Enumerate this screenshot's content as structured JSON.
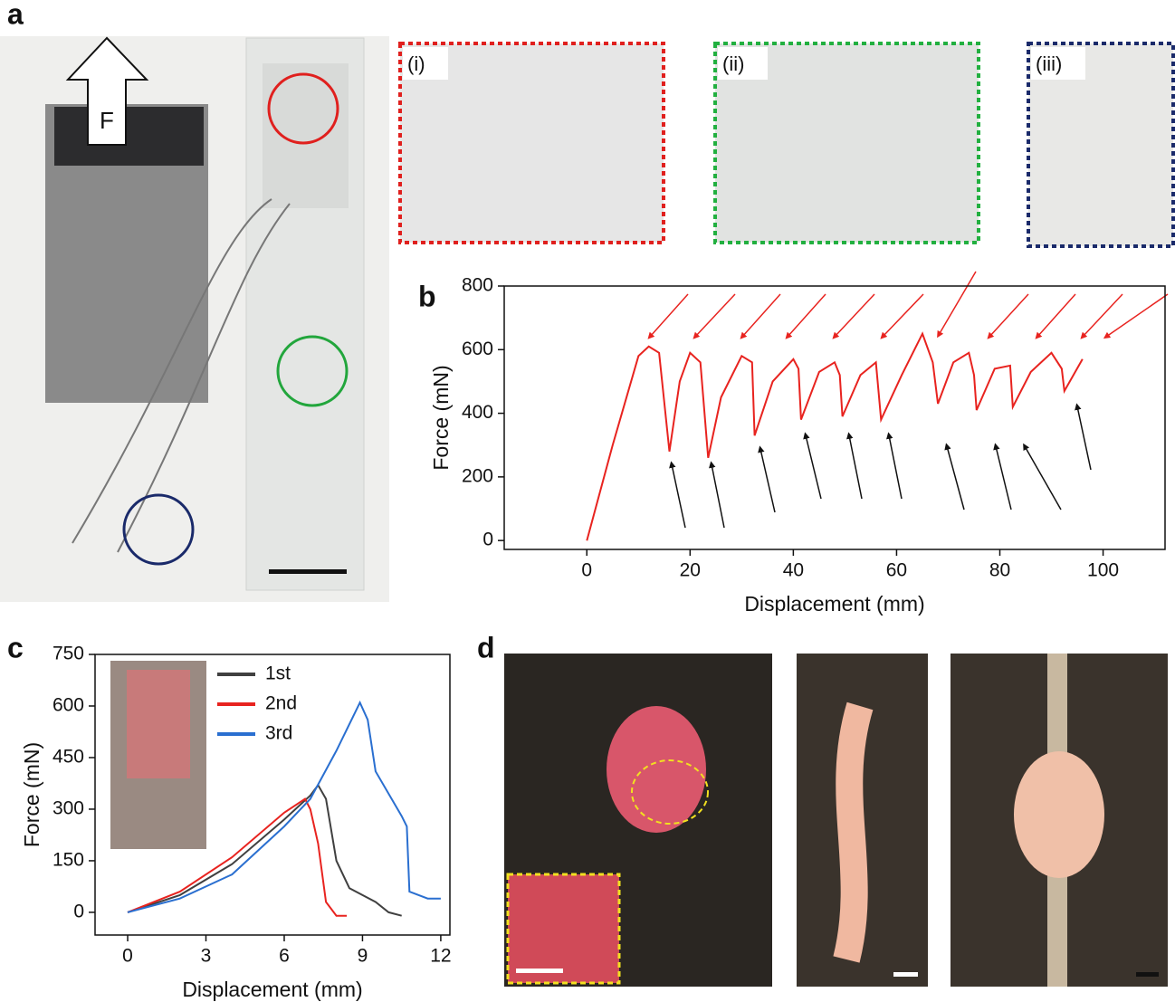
{
  "panels": {
    "a": "a",
    "b": "b",
    "c": "c",
    "d": "d"
  },
  "force_label": "F",
  "insets": [
    "(i)",
    "(ii)",
    "(iii)"
  ],
  "chart_data": [
    {
      "type": "line",
      "color": "#e8231f",
      "x": [
        0,
        5,
        10,
        12,
        14,
        16,
        18,
        20,
        22,
        23.5,
        26,
        30,
        32,
        32.5,
        36,
        40,
        41,
        41.5,
        45,
        48,
        49,
        49.5,
        53,
        56,
        57,
        61,
        65,
        67,
        68,
        71,
        74,
        75,
        75.5,
        79,
        82,
        82.5,
        86,
        90,
        92,
        92.5,
        96
      ],
      "values": [
        0,
        300,
        580,
        610,
        590,
        280,
        500,
        590,
        560,
        260,
        450,
        580,
        560,
        330,
        500,
        570,
        540,
        380,
        530,
        560,
        520,
        390,
        520,
        560,
        380,
        520,
        650,
        560,
        430,
        560,
        590,
        520,
        410,
        540,
        550,
        420,
        530,
        590,
        540,
        470,
        570
      ],
      "xlim": [
        -16,
        112
      ],
      "ylim": [
        -28,
        800
      ],
      "xticks": [
        0,
        20,
        40,
        60,
        80,
        100
      ],
      "yticks": [
        0,
        200,
        400,
        600,
        800
      ],
      "xlabel": "Displacement (mm)",
      "ylabel": "Force (mN)"
    },
    {
      "type": "line",
      "series": [
        {
          "name": "1st",
          "color": "#404040",
          "x": [
            0,
            2,
            4,
            6,
            7,
            7.3,
            7.6,
            8,
            8.5,
            9.5,
            10,
            10.5
          ],
          "values": [
            0,
            50,
            140,
            270,
            340,
            370,
            330,
            150,
            70,
            30,
            0,
            -10
          ]
        },
        {
          "name": "2nd",
          "color": "#e8231f",
          "x": [
            0,
            2,
            4,
            6,
            6.8,
            7,
            7.3,
            7.6,
            8,
            8.4
          ],
          "values": [
            0,
            60,
            160,
            290,
            330,
            300,
            200,
            30,
            -10,
            -10
          ]
        },
        {
          "name": "3rd",
          "color": "#2a6fd0",
          "x": [
            0,
            2,
            4,
            6,
            7,
            8,
            8.9,
            9.2,
            9.5,
            10.5,
            10.7,
            10.8,
            11.5,
            12
          ],
          "values": [
            0,
            40,
            110,
            250,
            330,
            470,
            610,
            560,
            410,
            280,
            250,
            60,
            40,
            40
          ]
        }
      ],
      "xlim": [
        -1.25,
        12.35
      ],
      "ylim": [
        -66,
        750
      ],
      "xticks": [
        0,
        3,
        6,
        9,
        12
      ],
      "yticks": [
        0,
        150,
        300,
        450,
        600,
        750
      ],
      "xlabel": "Displacement (mm)",
      "ylabel": "Force (mN)"
    }
  ]
}
